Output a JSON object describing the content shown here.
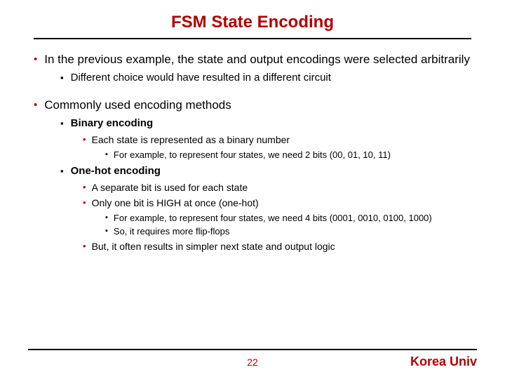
{
  "colors": {
    "accent": "#b30000",
    "text": "#000000",
    "bg": "#ffffff"
  },
  "fonts": {
    "family": "Verdana, Arial, sans-serif",
    "title_size": 24,
    "body_size": 15
  },
  "title": "FSM State Encoding",
  "page_number": "22",
  "brand": "Korea Univ",
  "bullets": {
    "b1": "In the previous example, the state and output encodings were selected arbitrarily",
    "b1_1": "Different choice would have resulted in a different circuit",
    "b2": "Commonly used encoding methods",
    "b2_1": "Binary encoding",
    "b2_1_1": "Each state is represented as a binary number",
    "b2_1_1_1": "For example, to represent four states, we need 2 bits (00, 01, 10, 11)",
    "b2_2": "One-hot encoding",
    "b2_2_1": "A separate bit is used for each state",
    "b2_2_2": "Only one bit is HIGH at once (one-hot)",
    "b2_2_2_1": "For example, to represent four states, we need 4 bits (0001, 0010, 0100, 1000)",
    "b2_2_2_2": "So, it requires more flip-flops",
    "b2_2_3": "But, it often results in simpler next state and output logic"
  }
}
